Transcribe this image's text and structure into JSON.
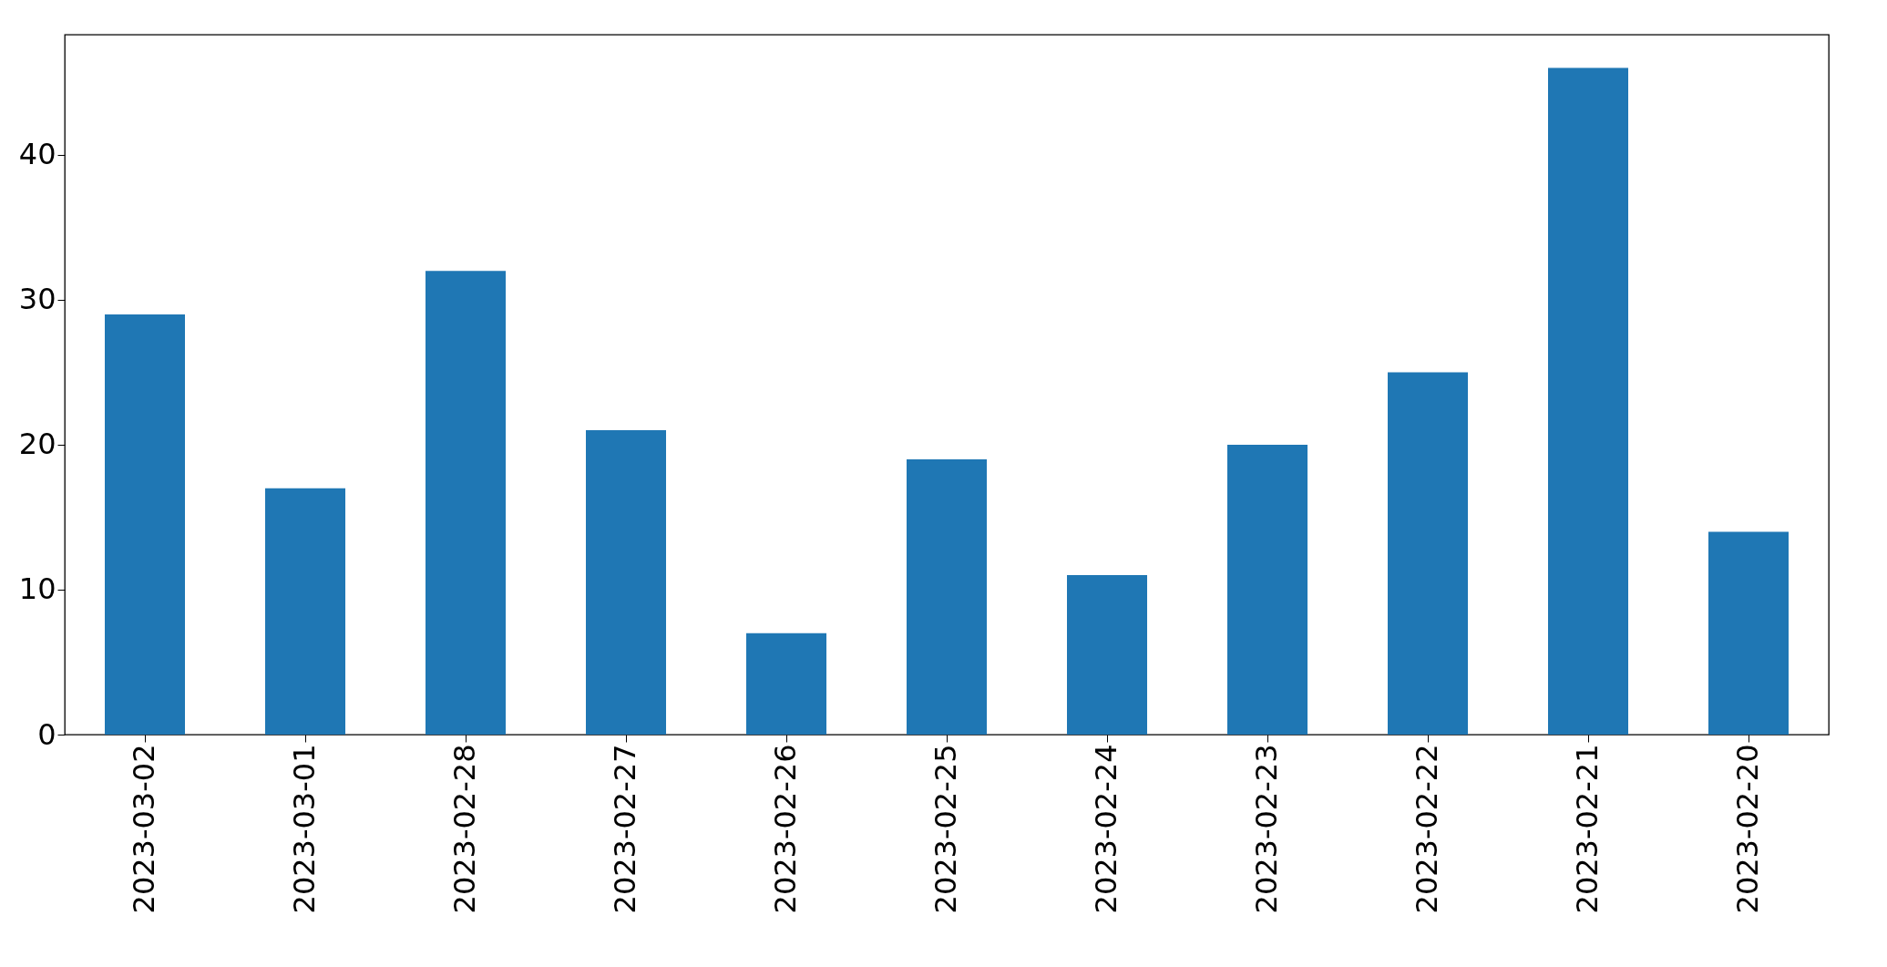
{
  "chart_data": {
    "type": "bar",
    "categories": [
      "2023-03-02",
      "2023-03-01",
      "2023-02-28",
      "2023-02-27",
      "2023-02-26",
      "2023-02-25",
      "2023-02-24",
      "2023-02-23",
      "2023-02-22",
      "2023-02-21",
      "2023-02-20"
    ],
    "values": [
      29,
      17,
      32,
      21,
      7,
      19,
      11,
      20,
      25,
      46,
      14
    ],
    "color": "#1f77b4",
    "ylim": [
      0,
      48.3
    ],
    "yticks": [
      0,
      10,
      20,
      30,
      40
    ],
    "grid": false
  }
}
